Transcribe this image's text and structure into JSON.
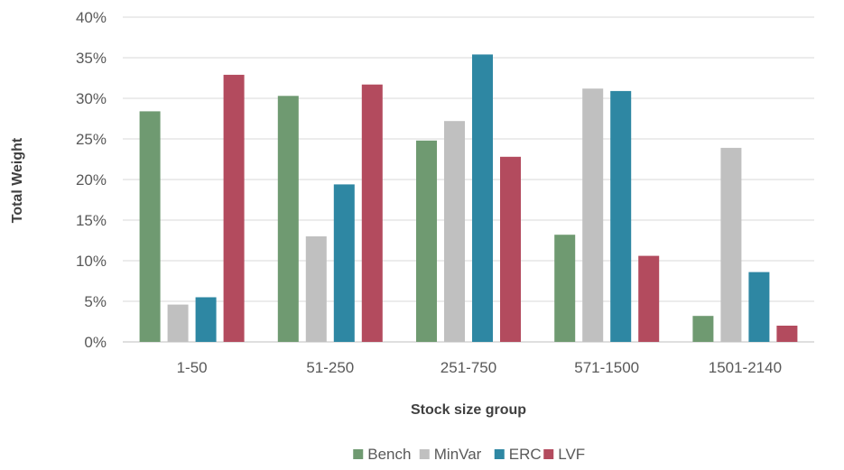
{
  "chart_data": {
    "type": "bar",
    "xlabel": "Stock size group",
    "ylabel": "Total Weight",
    "categories": [
      "1-50",
      "51-250",
      "251-750",
      "571-1500",
      "1501-2140"
    ],
    "ylim": [
      0,
      40
    ],
    "yticks": [
      0,
      5,
      10,
      15,
      20,
      25,
      30,
      35,
      40
    ],
    "tick_suffix": "%",
    "grid": true,
    "legend_position": "bottom",
    "series": [
      {
        "name": "Bench",
        "color": "#6f9a71",
        "values": [
          28.4,
          30.3,
          24.8,
          13.2,
          3.2
        ]
      },
      {
        "name": "MinVar",
        "color": "#c0c0c0",
        "values": [
          4.6,
          13.0,
          27.2,
          31.2,
          23.9
        ]
      },
      {
        "name": "ERC",
        "color": "#2e87a3",
        "values": [
          5.5,
          19.4,
          35.4,
          30.9,
          8.6
        ]
      },
      {
        "name": "LVF",
        "color": "#b34b5e",
        "values": [
          32.9,
          31.7,
          22.8,
          10.6,
          2.0
        ]
      }
    ]
  }
}
